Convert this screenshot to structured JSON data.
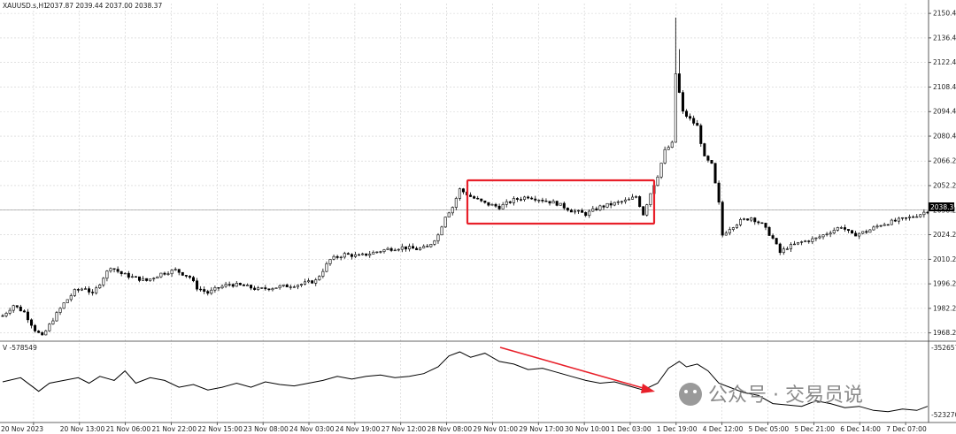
{
  "header": {
    "symbol": "XAUUSD.s,H1",
    "ohlc": "2037.87 2039.44 2037.00 2038.37"
  },
  "indicator": {
    "label": "V -578549",
    "top_label": "-352657",
    "bottom_label": "-523270"
  },
  "watermark": "公众号 · 交易员说",
  "colors": {
    "candle": "#000000",
    "grid": "#c8c8c8",
    "highlight_box": "#e8202a",
    "arrow": "#e8202a",
    "price_tag_bg": "#000000",
    "price_tag_text": "#ffffff"
  },
  "chart_data": [
    {
      "type": "candlestick",
      "symbol": "XAUUSD.s",
      "timeframe": "H1",
      "current_price": "2038.37",
      "y_ticks": [
        "2150.40",
        "2136.40",
        "2122.40",
        "2108.40",
        "2094.40",
        "2080.40",
        "2066.20",
        "2052.20",
        "2038.20",
        "2024.20",
        "2010.20",
        "1996.20",
        "1982.20",
        "1968.20"
      ],
      "ylim": [
        1964,
        2156
      ],
      "x_ticks": [
        "20 Nov 2023",
        "20 Nov 13:00",
        "21 Nov 06:00",
        "21 Nov 22:00",
        "22 Nov 15:00",
        "23 Nov 08:00",
        "24 Nov 03:00",
        "24 Nov 19:00",
        "27 Nov 12:00",
        "28 Nov 08:00",
        "29 Nov 01:00",
        "29 Nov 17:00",
        "30 Nov 10:00",
        "1 Dec 03:00",
        "1 Dec 19:00",
        "4 Dec 12:00",
        "5 Dec 05:00",
        "5 Dec 21:00",
        "6 Dec 14:00",
        "7 Dec 07:00"
      ],
      "grid": true,
      "price_path": [
        [
          0,
          1978
        ],
        [
          3,
          1984
        ],
        [
          6,
          1980
        ],
        [
          9,
          1970
        ],
        [
          11,
          1966
        ],
        [
          14,
          1976
        ],
        [
          17,
          1985
        ],
        [
          20,
          1992
        ],
        [
          23,
          1994
        ],
        [
          25,
          1990
        ],
        [
          28,
          2000
        ],
        [
          30,
          2006
        ],
        [
          33,
          2002
        ],
        [
          36,
          2000
        ],
        [
          40,
          1998
        ],
        [
          44,
          2002
        ],
        [
          48,
          2004
        ],
        [
          52,
          2000
        ],
        [
          54,
          1994
        ],
        [
          57,
          1991
        ],
        [
          60,
          1994
        ],
        [
          63,
          1996
        ],
        [
          67,
          1995
        ],
        [
          71,
          1993
        ],
        [
          75,
          1994
        ],
        [
          79,
          1995
        ],
        [
          83,
          1996
        ],
        [
          87,
          1998
        ],
        [
          89,
          2004
        ],
        [
          91,
          2010
        ],
        [
          95,
          2013
        ],
        [
          99,
          2012
        ],
        [
          103,
          2014
        ],
        [
          107,
          2016
        ],
        [
          111,
          2017
        ],
        [
          115,
          2016
        ],
        [
          118,
          2017
        ],
        [
          121,
          2024
        ],
        [
          123,
          2035
        ],
        [
          125,
          2040
        ],
        [
          127,
          2050
        ],
        [
          130,
          2046
        ],
        [
          134,
          2042
        ],
        [
          138,
          2040
        ],
        [
          142,
          2044
        ],
        [
          146,
          2046
        ],
        [
          150,
          2044
        ],
        [
          154,
          2042
        ],
        [
          158,
          2038
        ],
        [
          162,
          2036
        ],
        [
          166,
          2040
        ],
        [
          170,
          2042
        ],
        [
          174,
          2044
        ],
        [
          176,
          2046
        ],
        [
          178,
          2036
        ],
        [
          180,
          2048
        ],
        [
          182,
          2058
        ],
        [
          184,
          2072
        ],
        [
          186,
          2076
        ],
        [
          187,
          2116
        ],
        [
          189,
          2094
        ],
        [
          191,
          2090
        ],
        [
          193,
          2086
        ],
        [
          195,
          2068
        ],
        [
          197,
          2064
        ],
        [
          199,
          2042
        ],
        [
          200,
          2024
        ],
        [
          202,
          2028
        ],
        [
          205,
          2032
        ],
        [
          208,
          2034
        ],
        [
          211,
          2030
        ],
        [
          214,
          2022
        ],
        [
          216,
          2014
        ],
        [
          218,
          2017
        ],
        [
          222,
          2020
        ],
        [
          226,
          2022
        ],
        [
          230,
          2026
        ],
        [
          233,
          2029
        ],
        [
          236,
          2024
        ],
        [
          240,
          2026
        ],
        [
          244,
          2030
        ],
        [
          248,
          2032
        ],
        [
          252,
          2034
        ],
        [
          255,
          2036
        ],
        [
          257,
          2038
        ]
      ],
      "annotation": "rectangle highlighting 29 Nov 01:00 – 1 Dec 03:00 consolidation range"
    },
    {
      "type": "line",
      "name": "V",
      "last_value": "-578549",
      "ylim": [
        -523270,
        -352657
      ],
      "y_ticks": [
        "-352657",
        "-523270"
      ],
      "points": [
        [
          0,
          0.28
        ],
        [
          5,
          0.22
        ],
        [
          10,
          0.42
        ],
        [
          13,
          0.3
        ],
        [
          17,
          0.26
        ],
        [
          21,
          0.22
        ],
        [
          24,
          0.3
        ],
        [
          27,
          0.2
        ],
        [
          31,
          0.26
        ],
        [
          34,
          0.12
        ],
        [
          37,
          0.3
        ],
        [
          41,
          0.22
        ],
        [
          45,
          0.26
        ],
        [
          49,
          0.36
        ],
        [
          53,
          0.32
        ],
        [
          57,
          0.4
        ],
        [
          61,
          0.36
        ],
        [
          65,
          0.3
        ],
        [
          69,
          0.36
        ],
        [
          73,
          0.28
        ],
        [
          77,
          0.32
        ],
        [
          81,
          0.34
        ],
        [
          85,
          0.3
        ],
        [
          89,
          0.26
        ],
        [
          93,
          0.2
        ],
        [
          97,
          0.24
        ],
        [
          101,
          0.2
        ],
        [
          105,
          0.18
        ],
        [
          109,
          0.22
        ],
        [
          113,
          0.2
        ],
        [
          117,
          0.16
        ],
        [
          121,
          0.06
        ],
        [
          124,
          -0.1
        ],
        [
          127,
          -0.16
        ],
        [
          130,
          -0.08
        ],
        [
          134,
          -0.14
        ],
        [
          138,
          -0.02
        ],
        [
          142,
          0.02
        ],
        [
          146,
          0.1
        ],
        [
          150,
          0.08
        ],
        [
          154,
          0.14
        ],
        [
          158,
          0.2
        ],
        [
          162,
          0.26
        ],
        [
          166,
          0.3
        ],
        [
          170,
          0.28
        ],
        [
          174,
          0.34
        ],
        [
          178,
          0.4
        ],
        [
          182,
          0.3
        ],
        [
          185,
          0.08
        ],
        [
          188,
          -0.02
        ],
        [
          190,
          0.06
        ],
        [
          193,
          0.02
        ],
        [
          196,
          0.12
        ],
        [
          199,
          0.3
        ],
        [
          202,
          0.36
        ],
        [
          206,
          0.44
        ],
        [
          210,
          0.48
        ],
        [
          214,
          0.6
        ],
        [
          218,
          0.62
        ],
        [
          222,
          0.64
        ],
        [
          226,
          0.56
        ],
        [
          230,
          0.6
        ],
        [
          234,
          0.66
        ],
        [
          238,
          0.64
        ],
        [
          242,
          0.7
        ],
        [
          246,
          0.72
        ],
        [
          250,
          0.68
        ],
        [
          254,
          0.7
        ],
        [
          257,
          0.64
        ]
      ],
      "annotation": "arrow pointing down-right from 29 Nov peak to 1 Dec low"
    }
  ]
}
